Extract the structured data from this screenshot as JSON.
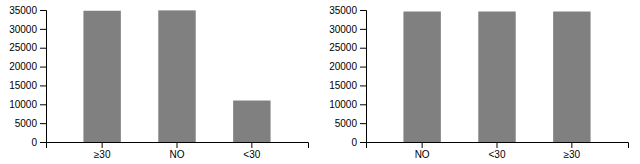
{
  "chart_data": [
    {
      "type": "bar",
      "categories": [
        "≥30",
        "NO",
        "<30"
      ],
      "values": [
        34800,
        34900,
        11000
      ],
      "color": "#808080",
      "ylim": [
        0,
        35000
      ],
      "yticks": [
        0,
        5000,
        10000,
        15000,
        20000,
        25000,
        30000,
        35000
      ],
      "grid": false
    },
    {
      "type": "bar",
      "categories": [
        "NO",
        "<30",
        "≥30"
      ],
      "values": [
        34600,
        34600,
        34600
      ],
      "color": "#808080",
      "ylim": [
        0,
        35000
      ],
      "yticks": [
        0,
        5000,
        10000,
        15000,
        20000,
        25000,
        30000,
        35000
      ],
      "grid": false
    }
  ]
}
